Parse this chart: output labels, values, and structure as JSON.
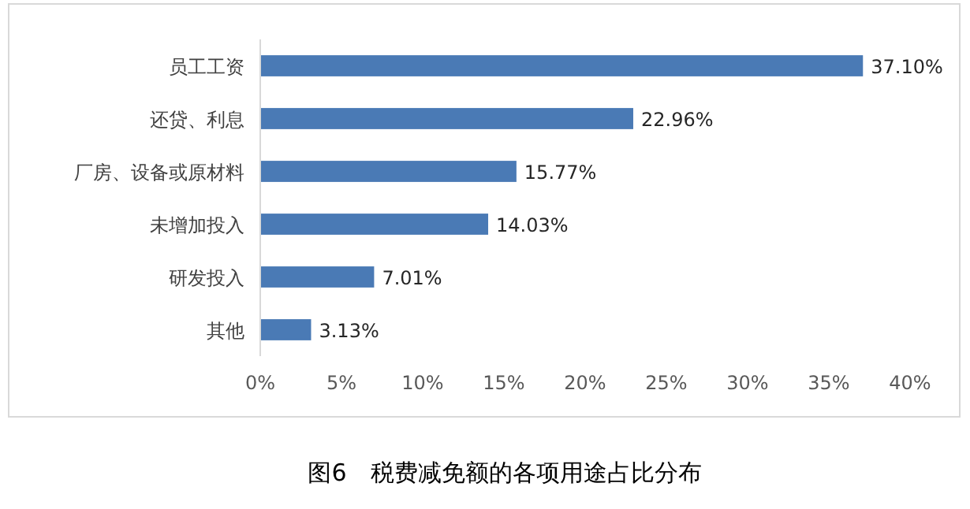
{
  "chart_data": {
    "type": "bar",
    "orientation": "horizontal",
    "title": "图6　税费减免额的各项用途占比分布",
    "categories": [
      "员工工资",
      "还贷、利息",
      "厂房、设备或原材料",
      "未增加投入",
      "研发投入",
      "其他"
    ],
    "values": [
      37.1,
      22.96,
      15.77,
      14.03,
      7.01,
      3.13
    ],
    "value_labels": [
      "37.10%",
      "22.96%",
      "15.77%",
      "14.03%",
      "7.01%",
      "3.13%"
    ],
    "color": "#4a7ab5",
    "xlim": [
      0,
      40
    ],
    "xticks": [
      {
        "value": 0,
        "label": "0%"
      },
      {
        "value": 5,
        "label": "5%"
      },
      {
        "value": 10,
        "label": "10%"
      },
      {
        "value": 15,
        "label": "15%"
      },
      {
        "value": 20,
        "label": "20%"
      },
      {
        "value": 25,
        "label": "25%"
      },
      {
        "value": 30,
        "label": "30%"
      },
      {
        "value": 35,
        "label": "35%"
      },
      {
        "value": 40,
        "label": "40%"
      }
    ],
    "grid": false
  }
}
